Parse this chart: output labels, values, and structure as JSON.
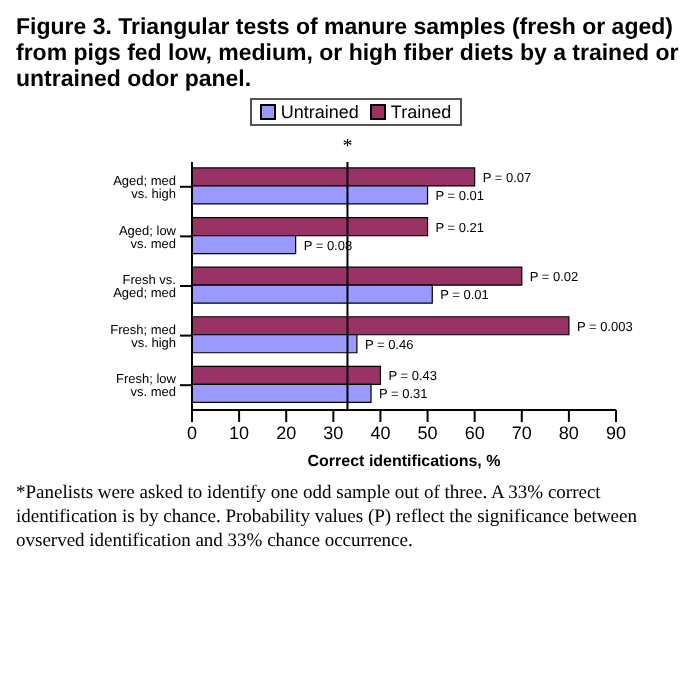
{
  "chart_data": {
    "type": "bar",
    "orientation": "horizontal",
    "title": "Figure 3. Triangular tests of manure samples (fresh or aged) from pigs fed low, medium, or high fiber diets by a trained or untrained odor panel.",
    "xlabel": "Correct identifications, %",
    "categories": [
      "Aged; med vs. high",
      "Aged; low vs. med",
      "Fresh vs. Aged; med",
      "Fresh; med vs. high",
      "Fresh; low vs. med"
    ],
    "series": [
      {
        "name": "Untrained",
        "color": "#9999ff",
        "values": [
          50,
          22,
          51,
          35,
          38
        ]
      },
      {
        "name": "Trained",
        "color": "#993366",
        "values": [
          60,
          50,
          70,
          80,
          40
        ]
      }
    ],
    "xlim": [
      0,
      90
    ],
    "xticks": [
      0,
      10,
      20,
      30,
      40,
      50,
      60,
      70,
      80,
      90
    ],
    "legend": "top",
    "ref_lines": [
      {
        "axis": "x",
        "value": 33,
        "label": "*"
      }
    ],
    "annotations": [
      {
        "text": "P = 0.01",
        "x": 50,
        "y": "Aged; med vs. high"
      },
      {
        "text": "P = 0.08",
        "x": 22,
        "y": "Aged; low vs. med"
      },
      {
        "text": "P = 0.01",
        "x": 51,
        "y": "Fresh vs. Aged; med"
      },
      {
        "text": "P = 0.46",
        "x": 35,
        "y": "Fresh; med vs. high"
      },
      {
        "text": "P = 0.31",
        "x": 38,
        "y": "Fresh; low vs. med"
      },
      {
        "text": "P = 0.07",
        "x": 60,
        "y": "Aged; med vs. high"
      },
      {
        "text": "P = 0.21",
        "x": 50,
        "y": "Aged; low vs. med"
      },
      {
        "text": "P = 0.02",
        "x": 70,
        "y": "Fresh vs. Aged; med"
      },
      {
        "text": "P = 0.003",
        "x": 80,
        "y": "Fresh; med vs. high"
      },
      {
        "text": "P = 0.43",
        "x": 40,
        "y": "Fresh; low vs. med"
      },
      "*Panelists were asked to identify one odd sample out of three. A 33% correct identification is by chance. Probability values (P) reflect the significance between ovserved identification and 33% chance occurrence."
    ]
  }
}
